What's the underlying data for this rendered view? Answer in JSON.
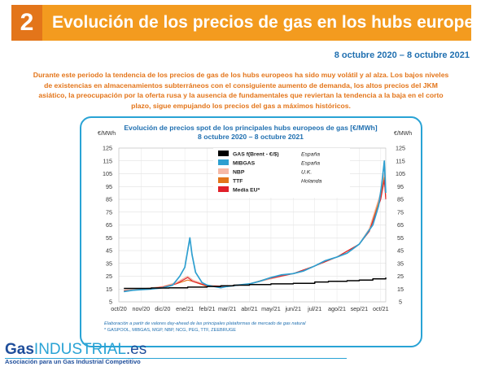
{
  "header": {
    "number": "2",
    "title": "Evolución de los precios de gas en los hubs europeos"
  },
  "date_range": "8 octubre 2020 – 8 octubre 2021",
  "summary": "Durante este periodo la tendencia de los precios de gas de los hubs europeos ha sido muy volátil y al alza. Los bajos niveles de existencias en almacenamientos subterráneos con el consiguiente aumento de demanda, los altos precios del JKM asiático, la preocupación por la oferta rusa y la ausencia de fundamentales que reviertan la tendencia a la baja en el corto plazo, sigue empujando los precios del gas a máximos históricos.",
  "logo": {
    "gas": "Gas",
    "industrial": "INDUSTRIAL",
    "suffix": ".es",
    "tagline": "Asociación para un Gas Industrial Competitivo"
  },
  "chart_data": {
    "type": "line",
    "title": "Evolución de precios spot de los principales hubs europeos de gas [€/MWh]",
    "subtitle": "8 octubre 2020 – 8 octubre 2021",
    "ylabel_left": "€/MWh",
    "ylabel_right": "€/MWh",
    "ylim": [
      5,
      125
    ],
    "yticks": [
      5,
      15,
      25,
      35,
      45,
      55,
      65,
      75,
      85,
      95,
      105,
      115,
      125
    ],
    "xlim": [
      "2020-10-01",
      "2021-10-08"
    ],
    "xticks": [
      {
        "label": "oct/20",
        "date": "2020-10-01"
      },
      {
        "label": "nov/20",
        "date": "2020-11-01"
      },
      {
        "label": "dic/20",
        "date": "2020-12-01"
      },
      {
        "label": "ene/21",
        "date": "2021-01-01"
      },
      {
        "label": "feb/21",
        "date": "2021-02-01"
      },
      {
        "label": "mar/21",
        "date": "2021-03-01"
      },
      {
        "label": "abr/21",
        "date": "2021-04-01"
      },
      {
        "label": "may/21",
        "date": "2021-05-01"
      },
      {
        "label": "jun/21",
        "date": "2021-06-01"
      },
      {
        "label": "jul/21",
        "date": "2021-07-01"
      },
      {
        "label": "ago/21",
        "date": "2021-08-01"
      },
      {
        "label": "sep/21",
        "date": "2021-09-01"
      },
      {
        "label": "oct/21",
        "date": "2021-10-01"
      }
    ],
    "grid": true,
    "legend_position": "top-left",
    "series": [
      {
        "name": "GAS f(Brent - €/$)",
        "country": "España",
        "color": "#000000",
        "points": [
          [
            "2020-10-08",
            15.5
          ],
          [
            "2020-11-15",
            15.8
          ],
          [
            "2020-12-10",
            16.0
          ],
          [
            "2021-01-05",
            16.5
          ],
          [
            "2021-02-01",
            17.0
          ],
          [
            "2021-02-20",
            17.5
          ],
          [
            "2021-03-10",
            18.0
          ],
          [
            "2021-04-01",
            18.5
          ],
          [
            "2021-05-01",
            19.0
          ],
          [
            "2021-06-01",
            19.5
          ],
          [
            "2021-07-01",
            20.5
          ],
          [
            "2021-07-20",
            21.0
          ],
          [
            "2021-08-15",
            21.5
          ],
          [
            "2021-09-01",
            22.0
          ],
          [
            "2021-09-20",
            23.0
          ],
          [
            "2021-10-08",
            24.0
          ]
        ]
      },
      {
        "name": "MIBGAS",
        "country": "España",
        "color": "#2E9FD0",
        "points": [
          [
            "2020-10-08",
            13
          ],
          [
            "2020-10-20",
            14
          ],
          [
            "2020-11-01",
            14.5
          ],
          [
            "2020-11-15",
            15
          ],
          [
            "2020-12-01",
            16
          ],
          [
            "2020-12-15",
            18
          ],
          [
            "2020-12-25",
            25
          ],
          [
            "2021-01-01",
            32
          ],
          [
            "2021-01-05",
            45
          ],
          [
            "2021-01-08",
            55
          ],
          [
            "2021-01-11",
            42
          ],
          [
            "2021-01-16",
            28
          ],
          [
            "2021-01-25",
            20
          ],
          [
            "2021-02-01",
            18
          ],
          [
            "2021-02-10",
            17
          ],
          [
            "2021-02-20",
            16
          ],
          [
            "2021-03-01",
            17
          ],
          [
            "2021-03-15",
            18
          ],
          [
            "2021-04-01",
            19
          ],
          [
            "2021-04-15",
            21
          ],
          [
            "2021-05-01",
            24
          ],
          [
            "2021-05-15",
            26
          ],
          [
            "2021-06-01",
            27
          ],
          [
            "2021-06-15",
            29
          ],
          [
            "2021-07-01",
            33
          ],
          [
            "2021-07-15",
            37
          ],
          [
            "2021-08-01",
            40
          ],
          [
            "2021-08-15",
            43
          ],
          [
            "2021-09-01",
            50
          ],
          [
            "2021-09-10",
            57
          ],
          [
            "2021-09-20",
            65
          ],
          [
            "2021-09-28",
            80
          ],
          [
            "2021-10-02",
            95
          ],
          [
            "2021-10-05",
            110
          ],
          [
            "2021-10-06",
            115
          ],
          [
            "2021-10-08",
            90
          ]
        ]
      },
      {
        "name": "NBP",
        "country": "U.K.",
        "color": "#F6B9A6",
        "points": [
          [
            "2020-10-08",
            14
          ],
          [
            "2020-11-01",
            15
          ],
          [
            "2020-12-01",
            17
          ],
          [
            "2020-12-20",
            20
          ],
          [
            "2021-01-05",
            25
          ],
          [
            "2021-01-12",
            22
          ],
          [
            "2021-02-01",
            18
          ],
          [
            "2021-03-01",
            17
          ],
          [
            "2021-04-01",
            19
          ],
          [
            "2021-05-01",
            23
          ],
          [
            "2021-06-01",
            27
          ],
          [
            "2021-07-01",
            33
          ],
          [
            "2021-08-01",
            40
          ],
          [
            "2021-09-01",
            50
          ],
          [
            "2021-09-15",
            62
          ],
          [
            "2021-10-01",
            90
          ],
          [
            "2021-10-06",
            105
          ],
          [
            "2021-10-08",
            88
          ]
        ]
      },
      {
        "name": "TTF",
        "country": "Holanda",
        "color": "#E3751A",
        "points": [
          [
            "2020-10-08",
            13.5
          ],
          [
            "2020-11-01",
            14.5
          ],
          [
            "2020-12-01",
            16.5
          ],
          [
            "2020-12-20",
            19
          ],
          [
            "2021-01-05",
            22
          ],
          [
            "2021-01-12",
            21
          ],
          [
            "2021-02-01",
            17
          ],
          [
            "2021-03-01",
            17
          ],
          [
            "2021-04-01",
            19
          ],
          [
            "2021-05-01",
            24
          ],
          [
            "2021-06-01",
            27
          ],
          [
            "2021-07-01",
            33
          ],
          [
            "2021-08-01",
            40
          ],
          [
            "2021-09-01",
            50
          ],
          [
            "2021-09-15",
            60
          ],
          [
            "2021-10-01",
            88
          ],
          [
            "2021-10-06",
            102
          ],
          [
            "2021-10-08",
            86
          ]
        ]
      },
      {
        "name": "Media EU*",
        "country": "",
        "color": "#E0202A",
        "points": [
          [
            "2020-10-08",
            13.5
          ],
          [
            "2020-11-01",
            14.5
          ],
          [
            "2020-12-01",
            16.5
          ],
          [
            "2020-12-20",
            19
          ],
          [
            "2021-01-05",
            24
          ],
          [
            "2021-01-12",
            21
          ],
          [
            "2021-02-01",
            17.5
          ],
          [
            "2021-03-01",
            17
          ],
          [
            "2021-04-01",
            19
          ],
          [
            "2021-05-01",
            23.5
          ],
          [
            "2021-06-01",
            27
          ],
          [
            "2021-07-01",
            33
          ],
          [
            "2021-08-01",
            40
          ],
          [
            "2021-09-01",
            50
          ],
          [
            "2021-09-15",
            60
          ],
          [
            "2021-10-01",
            85
          ],
          [
            "2021-10-06",
            100
          ],
          [
            "2021-10-08",
            85
          ]
        ]
      }
    ],
    "notes": [
      "Elaboración a partir de valores day-ahead de las principales plataformas de mercado de gas natural",
      "* GASPOOL, MIBGAS, MGP, NBP, NCG, PEG, TTF, ZEEBRUGE"
    ]
  }
}
